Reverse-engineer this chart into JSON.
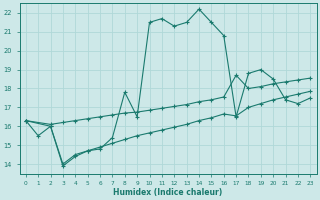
{
  "background_color": "#cde8e8",
  "grid_color": "#b0d8d8",
  "line_color": "#1a7a6e",
  "xlabel": "Humidex (Indice chaleur)",
  "xlim": [
    -0.5,
    23.5
  ],
  "ylim": [
    13.5,
    22.5
  ],
  "xticks": [
    0,
    1,
    2,
    3,
    4,
    5,
    6,
    7,
    8,
    9,
    10,
    11,
    12,
    13,
    14,
    15,
    16,
    17,
    18,
    19,
    20,
    21,
    22,
    23
  ],
  "yticks": [
    14,
    15,
    16,
    17,
    18,
    19,
    20,
    21,
    22
  ],
  "curves": [
    {
      "x": [
        0,
        1,
        2,
        3,
        4,
        5,
        6,
        7,
        8,
        9,
        10,
        11,
        12,
        13,
        14,
        15,
        16,
        17,
        18,
        19,
        20,
        21,
        22,
        23
      ],
      "y": [
        16.3,
        15.5,
        16.0,
        13.9,
        14.4,
        14.7,
        14.8,
        15.4,
        17.8,
        16.5,
        21.5,
        21.7,
        21.3,
        21.5,
        22.2,
        21.5,
        20.8,
        16.5,
        18.8,
        19.0,
        18.5,
        17.4,
        17.2,
        17.5
      ]
    },
    {
      "x": [
        0,
        2,
        3,
        4,
        5,
        6,
        7,
        8,
        9,
        10,
        11,
        12,
        13,
        14,
        15,
        16,
        17,
        18,
        19,
        20,
        21,
        22,
        23
      ],
      "y": [
        16.3,
        16.1,
        16.2,
        16.3,
        16.4,
        16.5,
        16.6,
        16.7,
        16.75,
        16.85,
        16.95,
        17.05,
        17.15,
        17.3,
        17.4,
        17.55,
        18.7,
        18.0,
        18.1,
        18.25,
        18.35,
        18.45,
        18.55
      ]
    },
    {
      "x": [
        0,
        2,
        3,
        4,
        5,
        6,
        7,
        8,
        9,
        10,
        11,
        12,
        13,
        14,
        15,
        16,
        17,
        18,
        19,
        20,
        21,
        22,
        23
      ],
      "y": [
        16.3,
        16.0,
        14.0,
        14.5,
        14.7,
        14.9,
        15.1,
        15.3,
        15.5,
        15.65,
        15.8,
        15.95,
        16.1,
        16.3,
        16.45,
        16.65,
        16.55,
        17.0,
        17.2,
        17.4,
        17.55,
        17.7,
        17.85
      ]
    }
  ]
}
